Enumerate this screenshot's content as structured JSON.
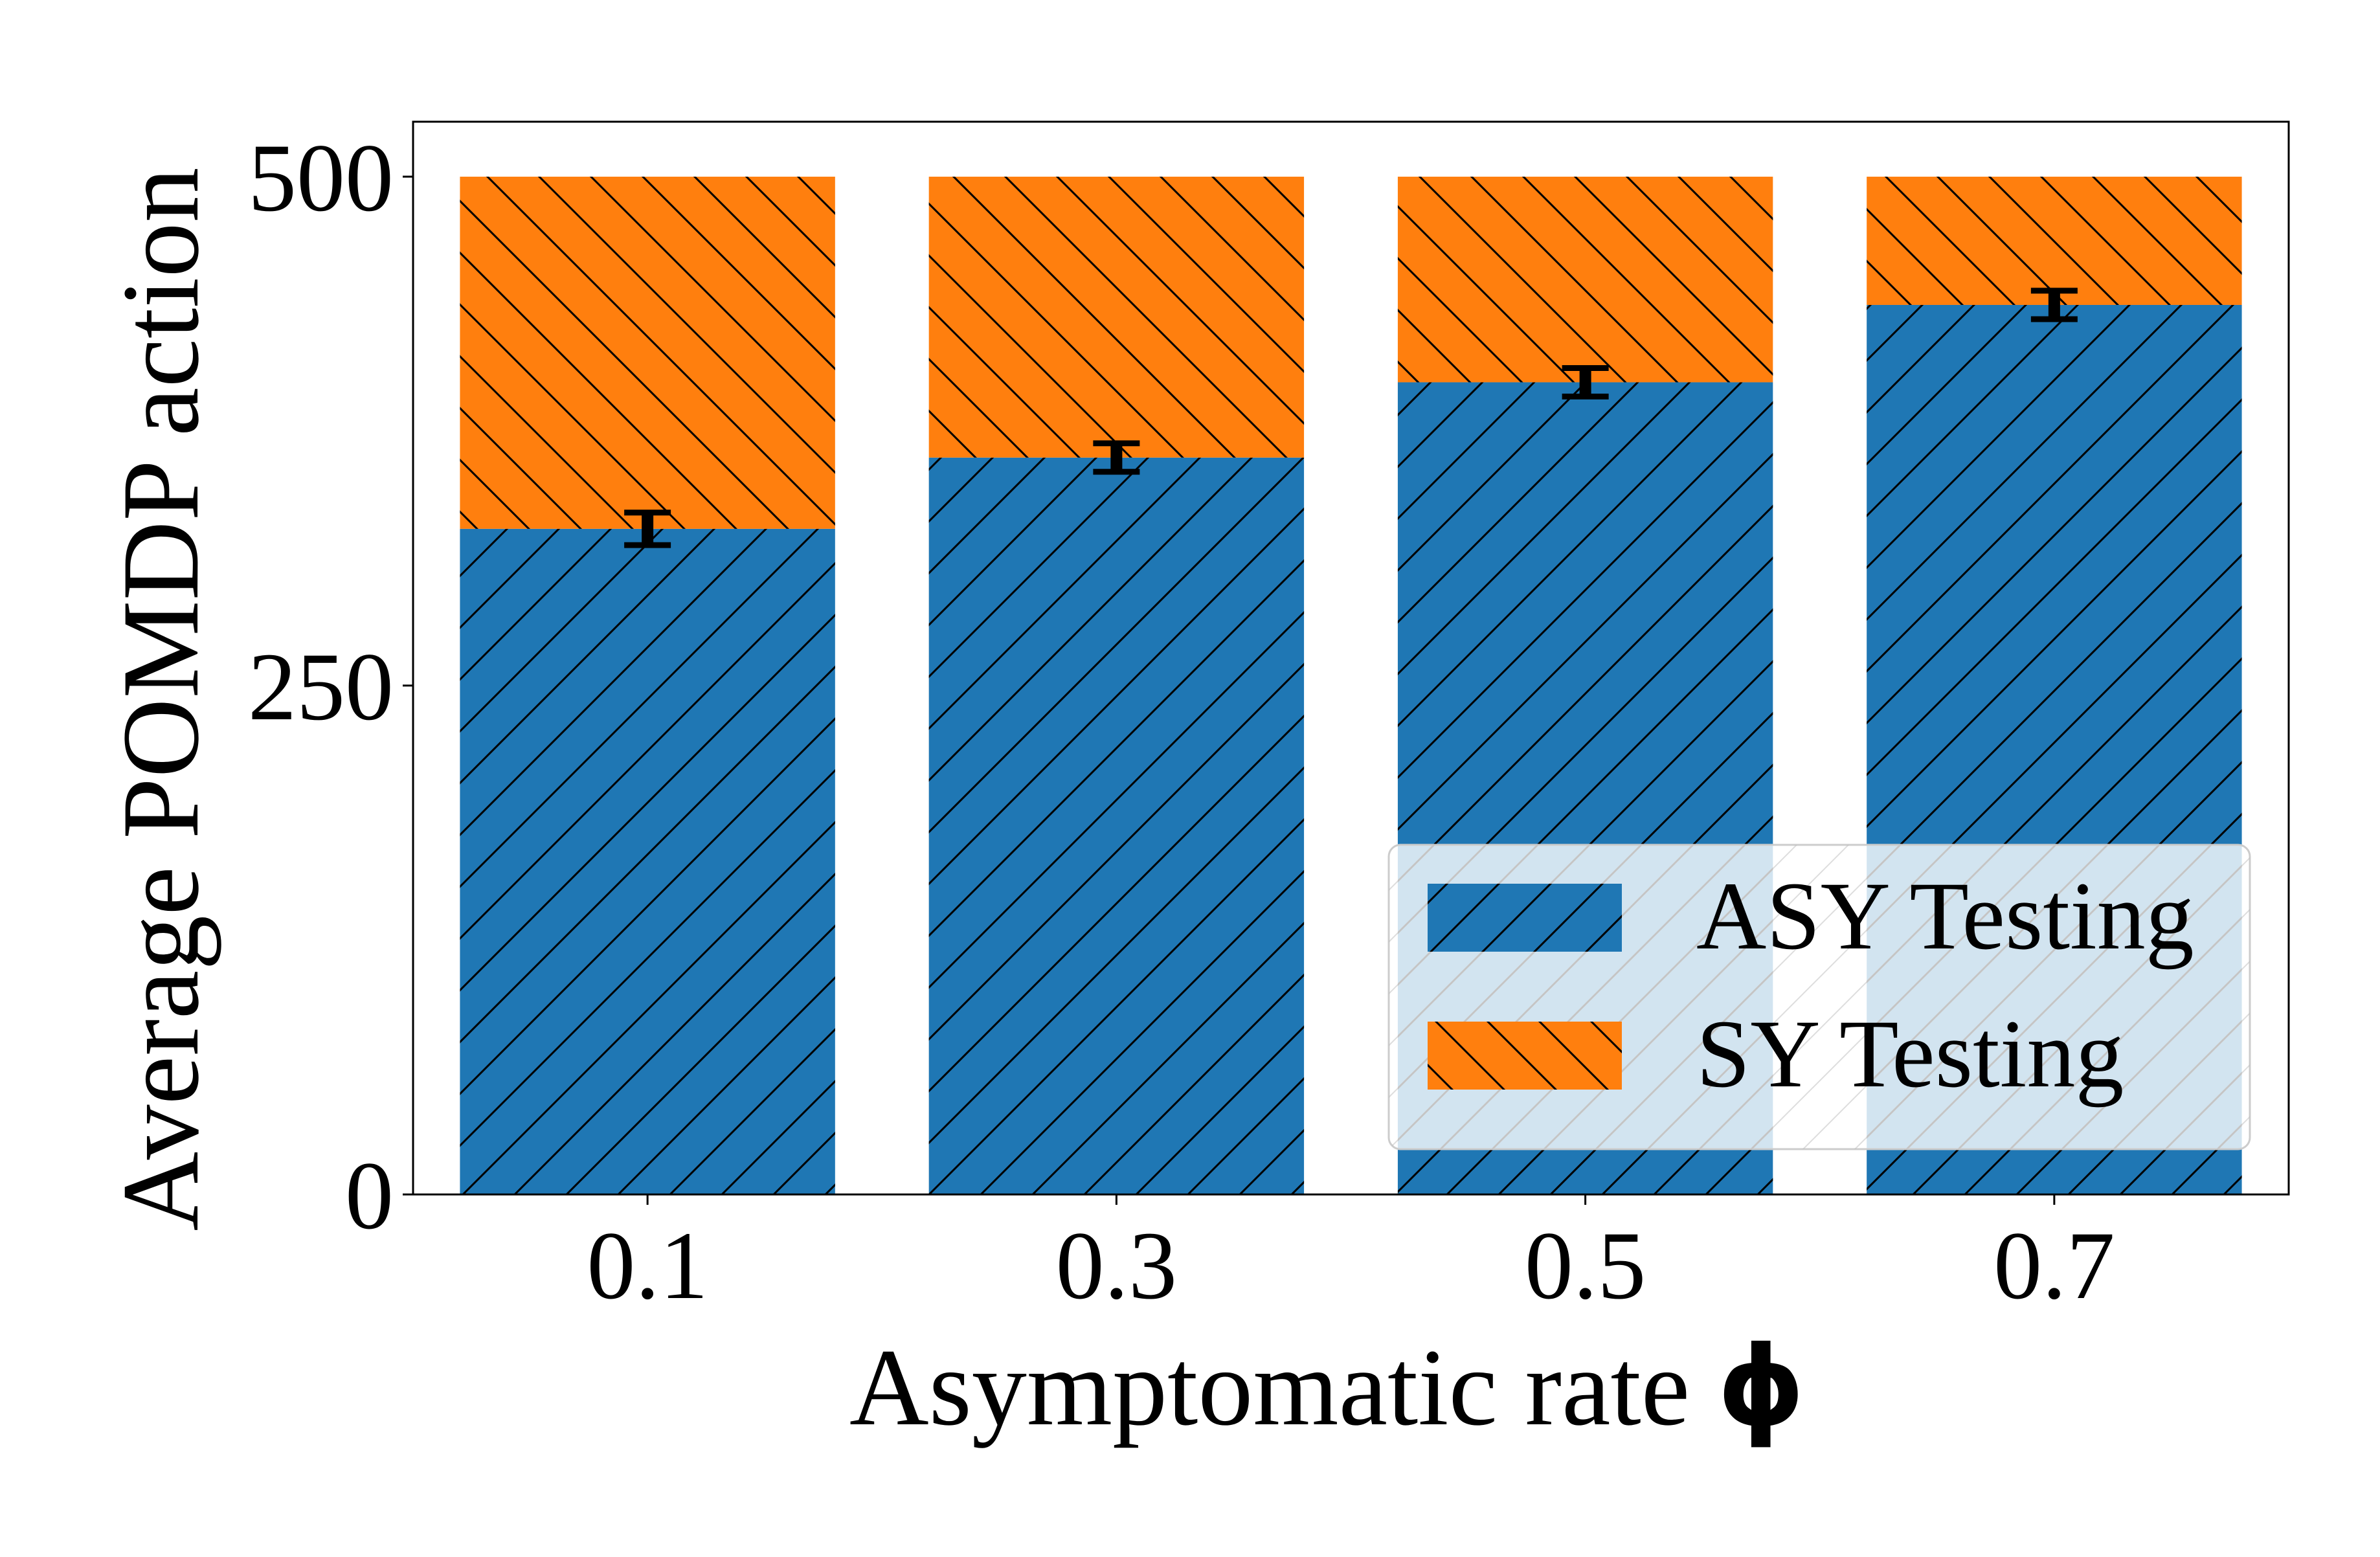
{
  "chart_data": {
    "type": "bar",
    "stacked": true,
    "categories": [
      "0.1",
      "0.3",
      "0.5",
      "0.7"
    ],
    "series": [
      {
        "name": "ASY Testing",
        "values": [
          327,
          362,
          399,
          437
        ],
        "error": [
          8,
          7,
          7,
          7
        ],
        "color": "#1f77b4",
        "hatch": "forward-diagonal"
      },
      {
        "name": "SY Testing",
        "values": [
          173,
          138,
          101,
          63
        ],
        "color": "#ff7f0e",
        "hatch": "back-diagonal"
      }
    ],
    "xlabel": "Asymptomatic rate ",
    "xlabel_symbol": "ϕ",
    "ylabel": "Average POMDP action",
    "yticks": [
      "0",
      "250",
      "500"
    ],
    "ylim": [
      0,
      527
    ],
    "grid": false,
    "legend_position": "lower-right"
  }
}
